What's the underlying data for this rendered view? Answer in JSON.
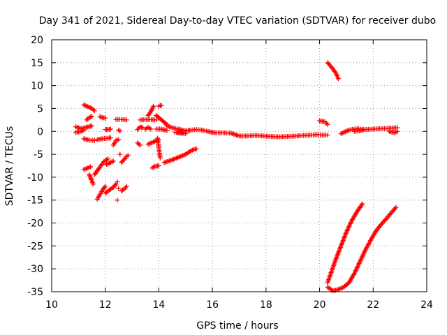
{
  "chart_data": {
    "type": "scatter",
    "title": "Day 341 of 2021, Sidereal Day-to-day VTEC variation (SDTVAR) for receiver dubo",
    "xlabel": "GPS time / hours",
    "ylabel": "SDTVAR / TECUs",
    "xlim": [
      10,
      24
    ],
    "ylim": [
      -35,
      20
    ],
    "xticks": [
      10,
      12,
      14,
      16,
      18,
      20,
      22,
      24
    ],
    "yticks": [
      20,
      15,
      10,
      5,
      0,
      -5,
      -10,
      -15,
      -20,
      -25,
      -30,
      -35
    ],
    "grid": true,
    "marker": "plus",
    "color": "#ff0000",
    "series": [
      {
        "segments": [
          [
            [
              10.9,
              1.0
            ],
            [
              11.1,
              0.6
            ],
            [
              11.3,
              0.9
            ],
            [
              11.5,
              1.2
            ]
          ],
          [
            [
              10.9,
              -0.2
            ],
            [
              11.1,
              0.0
            ],
            [
              11.2,
              0.3
            ]
          ],
          [
            [
              11.2,
              5.8
            ],
            [
              11.35,
              5.4
            ],
            [
              11.5,
              5.0
            ],
            [
              11.6,
              4.5
            ]
          ],
          [
            [
              11.3,
              2.5
            ],
            [
              11.4,
              3.0
            ],
            [
              11.5,
              3.3
            ]
          ],
          [
            [
              11.2,
              -1.6
            ],
            [
              11.4,
              -1.9
            ],
            [
              11.6,
              -2.0
            ]
          ],
          [
            [
              11.2,
              -8.3
            ],
            [
              11.35,
              -8.0
            ],
            [
              11.45,
              -7.7
            ]
          ],
          [
            [
              11.4,
              -9.4
            ],
            [
              11.5,
              -10.8
            ],
            [
              11.55,
              -11.5
            ]
          ],
          [
            [
              11.7,
              -14.8
            ],
            [
              11.8,
              -13.8
            ],
            [
              11.9,
              -12.8
            ],
            [
              12.0,
              -12.0
            ]
          ],
          [
            [
              11.6,
              -9.4
            ],
            [
              11.8,
              -7.8
            ],
            [
              11.95,
              -6.6
            ],
            [
              12.1,
              -6.0
            ]
          ],
          [
            [
              11.8,
              3.2
            ],
            [
              11.9,
              3.0
            ],
            [
              12.0,
              2.9
            ]
          ],
          [
            [
              11.7,
              -1.8
            ],
            [
              11.9,
              -1.6
            ],
            [
              12.1,
              -1.5
            ],
            [
              12.2,
              -1.4
            ]
          ],
          [
            [
              12.0,
              0.4
            ],
            [
              12.1,
              0.4
            ],
            [
              12.2,
              0.5
            ]
          ],
          [
            [
              12.0,
              -13.5
            ],
            [
              12.15,
              -12.8
            ],
            [
              12.3,
              -12.2
            ],
            [
              12.4,
              -11.5
            ]
          ],
          [
            [
              12.05,
              -7.2
            ],
            [
              12.2,
              -6.8
            ],
            [
              12.3,
              -6.5
            ]
          ],
          [
            [
              12.3,
              -3.0
            ],
            [
              12.4,
              -2.0
            ],
            [
              12.5,
              -1.8
            ]
          ],
          [
            [
              12.4,
              2.6
            ],
            [
              12.6,
              2.6
            ],
            [
              12.8,
              2.5
            ]
          ],
          [
            [
              12.5,
              0.3
            ],
            [
              12.55,
              0.1
            ]
          ],
          [
            [
              12.6,
              -6.8
            ],
            [
              12.75,
              -5.8
            ],
            [
              12.85,
              -5.2
            ]
          ],
          [
            [
              12.6,
              -13.0
            ],
            [
              12.7,
              -12.6
            ],
            [
              12.8,
              -12.0
            ]
          ],
          [
            [
              12.45,
              -15.0
            ]
          ],
          [
            [
              12.5,
              -12.5
            ]
          ],
          [
            [
              12.55,
              -5.0
            ]
          ],
          [
            [
              12.45,
              -11.0
            ]
          ],
          [
            [
              13.2,
              0.4
            ],
            [
              13.3,
              1.0
            ],
            [
              13.4,
              0.8
            ]
          ],
          [
            [
              13.3,
              2.5
            ],
            [
              13.6,
              2.6
            ],
            [
              13.9,
              2.5
            ]
          ],
          [
            [
              13.2,
              -2.5
            ],
            [
              13.3,
              -3.0
            ]
          ],
          [
            [
              13.5,
              0.5
            ],
            [
              13.6,
              0.9
            ],
            [
              13.7,
              0.5
            ]
          ],
          [
            [
              13.6,
              -2.8
            ],
            [
              13.8,
              -2.3
            ],
            [
              14.0,
              -1.8
            ]
          ],
          [
            [
              13.6,
              3.5
            ],
            [
              13.7,
              4.3
            ],
            [
              13.8,
              5.5
            ]
          ],
          [
            [
              13.75,
              -8.0
            ],
            [
              13.85,
              -7.6
            ],
            [
              14.0,
              -7.5
            ]
          ],
          [
            [
              14.0,
              5.5
            ],
            [
              14.1,
              5.7
            ]
          ],
          [
            [
              13.9,
              0.5
            ],
            [
              14.1,
              0.5
            ],
            [
              14.3,
              0.2
            ]
          ],
          [
            [
              13.9,
              3.5
            ],
            [
              14.1,
              2.5
            ],
            [
              14.3,
              1.5
            ]
          ],
          [
            [
              14.05,
              -5.8
            ],
            [
              13.95,
              -1.5
            ]
          ],
          [
            [
              14.2,
              -6.8
            ],
            [
              14.5,
              -6.2
            ],
            [
              14.8,
              -5.5
            ],
            [
              15.0,
              -5.0
            ],
            [
              15.2,
              -4.2
            ],
            [
              15.4,
              -3.8
            ]
          ],
          [
            [
              14.3,
              1.2
            ],
            [
              14.5,
              0.8
            ],
            [
              14.8,
              0.4
            ],
            [
              15.0,
              0.1
            ],
            [
              15.2,
              0.3
            ],
            [
              15.4,
              0.4
            ],
            [
              15.6,
              0.3
            ],
            [
              15.9,
              -0.1
            ],
            [
              16.1,
              -0.3
            ],
            [
              16.4,
              -0.3
            ],
            [
              16.7,
              -0.4
            ],
            [
              17.0,
              -1.0
            ],
            [
              17.3,
              -1.0
            ],
            [
              17.6,
              -0.9
            ],
            [
              17.9,
              -1.0
            ],
            [
              18.2,
              -1.1
            ],
            [
              18.5,
              -1.2
            ],
            [
              18.8,
              -1.1
            ],
            [
              19.1,
              -1.0
            ],
            [
              19.4,
              -0.9
            ],
            [
              19.7,
              -0.8
            ],
            [
              19.9,
              -0.7
            ],
            [
              20.1,
              -0.8
            ],
            [
              20.3,
              -0.8
            ]
          ],
          [
            [
              14.6,
              -0.2
            ],
            [
              14.9,
              -0.3
            ]
          ],
          [
            [
              14.7,
              -0.3
            ],
            [
              15.0,
              -0.5
            ]
          ],
          [
            [
              20.0,
              2.3
            ],
            [
              20.2,
              2.1
            ],
            [
              20.3,
              1.5
            ]
          ],
          [
            [
              20.3,
              15.0
            ],
            [
              20.45,
              14.0
            ],
            [
              20.6,
              12.8
            ],
            [
              20.7,
              11.5
            ]
          ],
          [
            [
              20.3,
              -34.0
            ],
            [
              20.5,
              -34.8
            ],
            [
              20.7,
              -34.5
            ],
            [
              20.9,
              -34.0
            ],
            [
              21.1,
              -33.0
            ],
            [
              21.3,
              -31.0
            ],
            [
              21.5,
              -28.5
            ],
            [
              21.7,
              -26.0
            ],
            [
              21.9,
              -23.8
            ],
            [
              22.1,
              -21.8
            ],
            [
              22.3,
              -20.3
            ],
            [
              22.5,
              -19.0
            ],
            [
              22.7,
              -17.6
            ],
            [
              22.85,
              -16.6
            ]
          ],
          [
            [
              20.3,
              -33.0
            ],
            [
              20.45,
              -30.5
            ],
            [
              20.6,
              -28.0
            ],
            [
              20.8,
              -25.0
            ],
            [
              21.0,
              -22.0
            ],
            [
              21.2,
              -19.5
            ],
            [
              21.4,
              -17.5
            ],
            [
              21.6,
              -15.8
            ]
          ],
          [
            [
              20.8,
              -0.5
            ],
            [
              21.1,
              0.3
            ],
            [
              21.4,
              0.6
            ],
            [
              21.7,
              0.4
            ],
            [
              22.0,
              0.5
            ],
            [
              22.3,
              0.6
            ],
            [
              22.6,
              0.7
            ],
            [
              22.9,
              0.8
            ]
          ],
          [
            [
              21.3,
              0.0
            ],
            [
              21.6,
              0.2
            ]
          ],
          [
            [
              22.6,
              0.0
            ],
            [
              22.8,
              -0.3
            ],
            [
              22.9,
              0.0
            ]
          ]
        ]
      }
    ]
  }
}
